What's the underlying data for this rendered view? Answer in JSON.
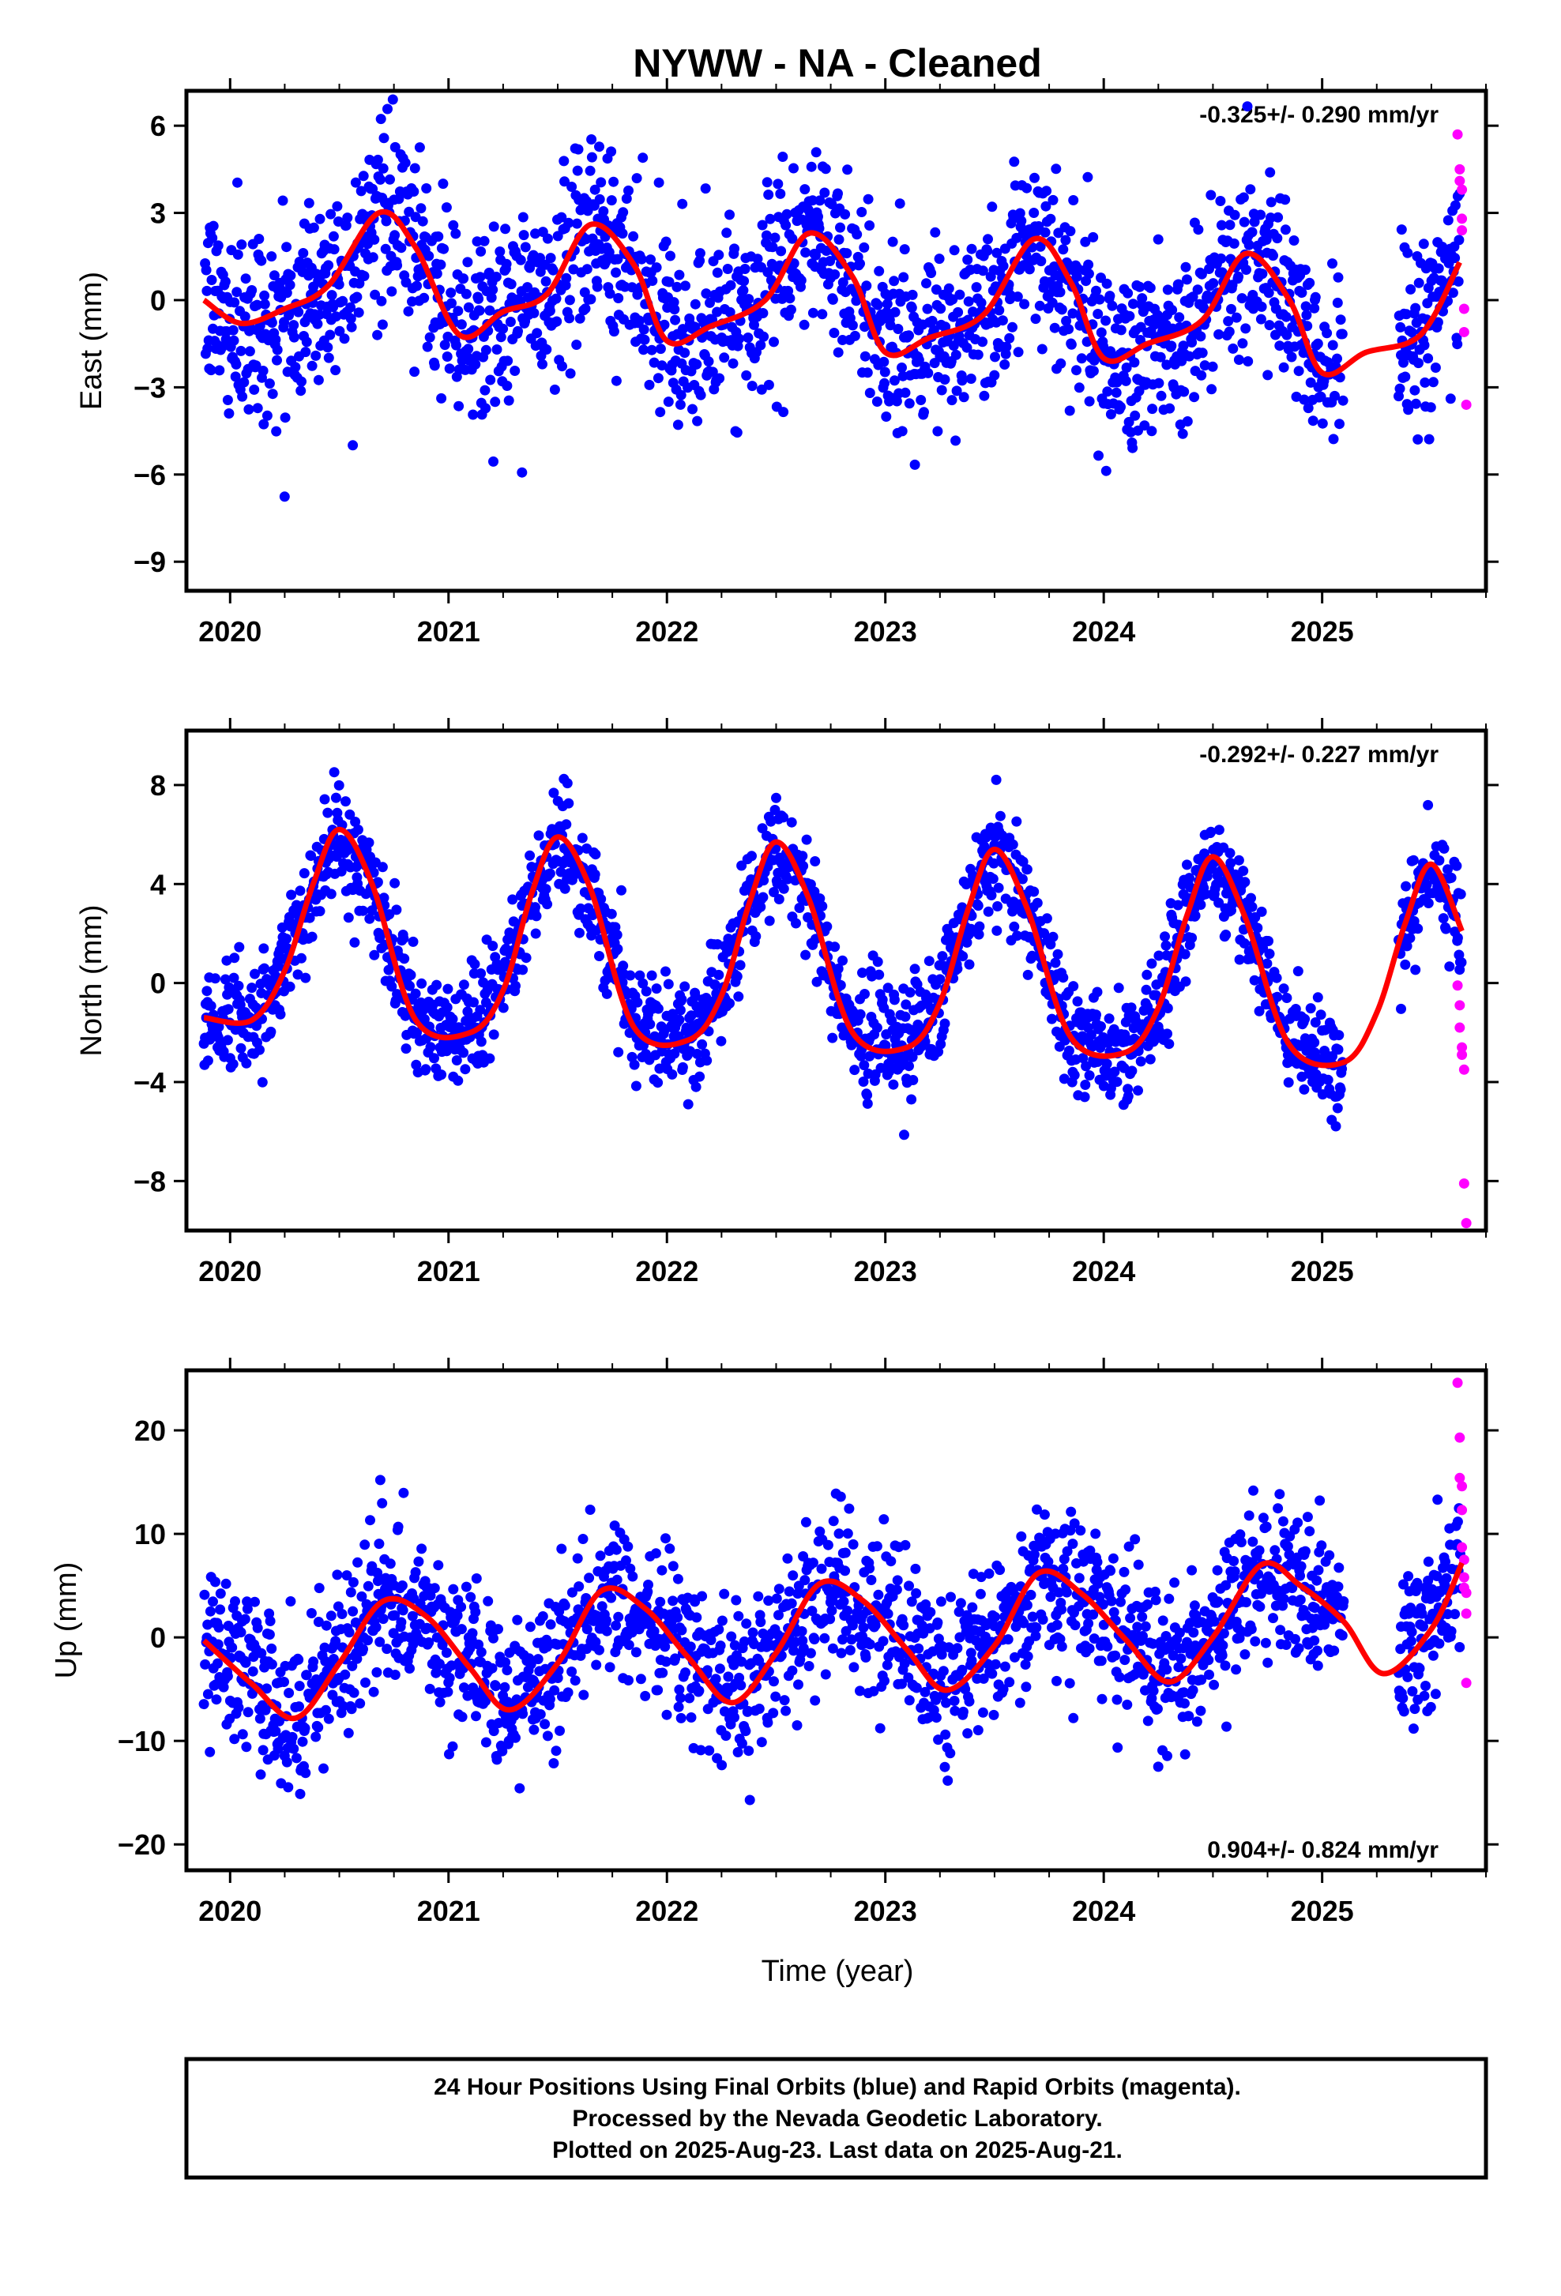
{
  "title": "NYWW  - NA - Cleaned",
  "colors": {
    "final": "#0000ff",
    "rapid": "#ff00ff",
    "fit": "#ff0000",
    "frame": "#000000"
  },
  "chart_data": [
    {
      "type": "scatter",
      "component": "east",
      "ylabel": "East (mm)",
      "xlabel": "",
      "rate": "-0.325+/- 0.290 mm/yr",
      "rate_position": "top-right",
      "xlim": [
        2019.8,
        2025.75
      ],
      "ylim": [
        -10,
        7.2
      ],
      "yticks": [
        6,
        3,
        0,
        -3,
        -6,
        -9
      ],
      "ytick_labels": [
        "6",
        "3",
        "0",
        "−3",
        "−6",
        "−9"
      ],
      "xticks": [
        2020,
        2021,
        2022,
        2023,
        2024,
        2025
      ],
      "xtick_labels": [
        "2020",
        "2021",
        "2022",
        "2023",
        "2024",
        "2025"
      ],
      "seasonal": {
        "amplitude": 1.9,
        "phase": 2020.65,
        "spread": 1.6
      },
      "fit_curve": {
        "x": [
          2019.88,
          2020.05,
          2020.25,
          2020.45,
          2020.68,
          2020.85,
          2021.05,
          2021.25,
          2021.45,
          2021.65,
          2021.85,
          2022.0,
          2022.2,
          2022.45,
          2022.65,
          2022.85,
          2023.0,
          2023.2,
          2023.45,
          2023.68,
          2023.85,
          2024.0,
          2024.2,
          2024.45,
          2024.65,
          2024.85,
          2025.0,
          2025.2,
          2025.45,
          2025.63
        ],
        "y": [
          0.0,
          -0.8,
          -0.3,
          0.5,
          3.0,
          1.8,
          -1.2,
          -0.4,
          0.2,
          2.6,
          1.2,
          -1.4,
          -0.9,
          0.0,
          2.3,
          0.8,
          -1.8,
          -1.3,
          -0.5,
          2.1,
          0.6,
          -2.0,
          -1.5,
          -0.7,
          1.6,
          0.0,
          -2.5,
          -1.8,
          -1.2,
          1.3
        ]
      },
      "rapid_points": {
        "x": [
          2025.62,
          2025.63,
          2025.63,
          2025.64,
          2025.64,
          2025.64,
          2025.65,
          2025.65,
          2025.66
        ],
        "y": [
          5.7,
          4.5,
          4.1,
          3.8,
          2.8,
          2.4,
          -0.3,
          -1.1,
          -3.6
        ]
      }
    },
    {
      "type": "scatter",
      "component": "north",
      "ylabel": "North (mm)",
      "xlabel": "",
      "rate": "-0.292+/- 0.227 mm/yr",
      "rate_position": "top-right",
      "xlim": [
        2019.8,
        2025.75
      ],
      "ylim": [
        -10,
        10.2
      ],
      "yticks": [
        8,
        4,
        0,
        -4,
        -8
      ],
      "ytick_labels": [
        "8",
        "4",
        "0",
        "−4",
        "−8"
      ],
      "xticks": [
        2020,
        2021,
        2022,
        2023,
        2024,
        2025
      ],
      "xtick_labels": [
        "2020",
        "2021",
        "2022",
        "2023",
        "2024",
        "2025"
      ],
      "seasonal": {
        "amplitude": 4.0,
        "phase": 2020.5,
        "spread": 1.1
      },
      "fit_curve": {
        "x": [
          2019.88,
          2020.1,
          2020.25,
          2020.38,
          2020.5,
          2020.65,
          2020.85,
          2021.1,
          2021.25,
          2021.38,
          2021.5,
          2021.65,
          2021.85,
          2022.1,
          2022.25,
          2022.38,
          2022.5,
          2022.65,
          2022.85,
          2023.1,
          2023.25,
          2023.38,
          2023.5,
          2023.65,
          2023.85,
          2024.1,
          2024.25,
          2024.38,
          2024.5,
          2024.65,
          2024.85,
          2025.1,
          2025.25,
          2025.38,
          2025.5,
          2025.64
        ],
        "y": [
          -1.4,
          -1.5,
          0.5,
          4.0,
          6.2,
          4.0,
          -1.5,
          -2.0,
          -0.3,
          3.6,
          5.9,
          3.8,
          -1.8,
          -2.3,
          -0.5,
          3.3,
          5.7,
          3.4,
          -2.0,
          -2.6,
          -0.8,
          3.0,
          5.4,
          3.0,
          -2.2,
          -2.8,
          -1.0,
          2.7,
          5.1,
          2.6,
          -2.5,
          -3.2,
          -1.2,
          2.4,
          4.8,
          2.1
        ]
      },
      "rapid_points": {
        "x": [
          2025.62,
          2025.63,
          2025.63,
          2025.64,
          2025.64,
          2025.65,
          2025.65,
          2025.66
        ],
        "y": [
          -0.1,
          -0.9,
          -1.8,
          -2.6,
          -2.9,
          -3.5,
          -8.1,
          -9.7
        ]
      }
    },
    {
      "type": "scatter",
      "component": "up",
      "ylabel": "Up (mm)",
      "xlabel": "Time (year)",
      "rate": "0.904+/- 0.824 mm/yr",
      "rate_position": "bottom-right",
      "xlim": [
        2019.8,
        2025.75
      ],
      "ylim": [
        -22.5,
        25.8
      ],
      "yticks": [
        20,
        10,
        0,
        -10,
        -20
      ],
      "ytick_labels": [
        "20",
        "10",
        "0",
        "−10",
        "−20"
      ],
      "xticks": [
        2020,
        2021,
        2022,
        2023,
        2024,
        2025
      ],
      "xtick_labels": [
        "2020",
        "2021",
        "2022",
        "2023",
        "2024",
        "2025"
      ],
      "seasonal": {
        "amplitude": 5.3,
        "phase": 2020.7,
        "spread": 3.8
      },
      "fit_curve": {
        "x": [
          2019.88,
          2020.1,
          2020.3,
          2020.5,
          2020.7,
          2020.9,
          2021.1,
          2021.28,
          2021.5,
          2021.7,
          2021.9,
          2022.1,
          2022.3,
          2022.5,
          2022.7,
          2022.9,
          2023.1,
          2023.28,
          2023.5,
          2023.7,
          2023.9,
          2024.1,
          2024.3,
          2024.5,
          2024.72,
          2024.9,
          2025.1,
          2025.28,
          2025.5,
          2025.64
        ],
        "y": [
          -0.3,
          -4.5,
          -7.8,
          -2.5,
          3.5,
          2.0,
          -3.0,
          -7.0,
          -2.5,
          4.5,
          2.8,
          -2.0,
          -6.3,
          -1.5,
          5.2,
          3.5,
          -1.2,
          -5.1,
          -0.8,
          6.2,
          4.2,
          -0.2,
          -4.3,
          0.0,
          7.0,
          5.0,
          1.5,
          -3.5,
          0.8,
          7.2
        ]
      },
      "rapid_points": {
        "x": [
          2025.62,
          2025.63,
          2025.63,
          2025.64,
          2025.64,
          2025.64,
          2025.65,
          2025.65,
          2025.65,
          2025.66,
          2025.66,
          2025.66
        ],
        "y": [
          24.6,
          19.3,
          15.4,
          14.6,
          12.3,
          8.7,
          7.5,
          5.8,
          4.8,
          4.3,
          2.3,
          -4.4
        ]
      }
    }
  ],
  "footer": {
    "line1": "24 Hour Positions Using Final Orbits (blue) and Rapid Orbits (magenta).",
    "line2": "Processed by the Nevada Geodetic Laboratory.",
    "line3": "Plotted on 2025-Aug-23. Last data on 2025-Aug-21."
  }
}
